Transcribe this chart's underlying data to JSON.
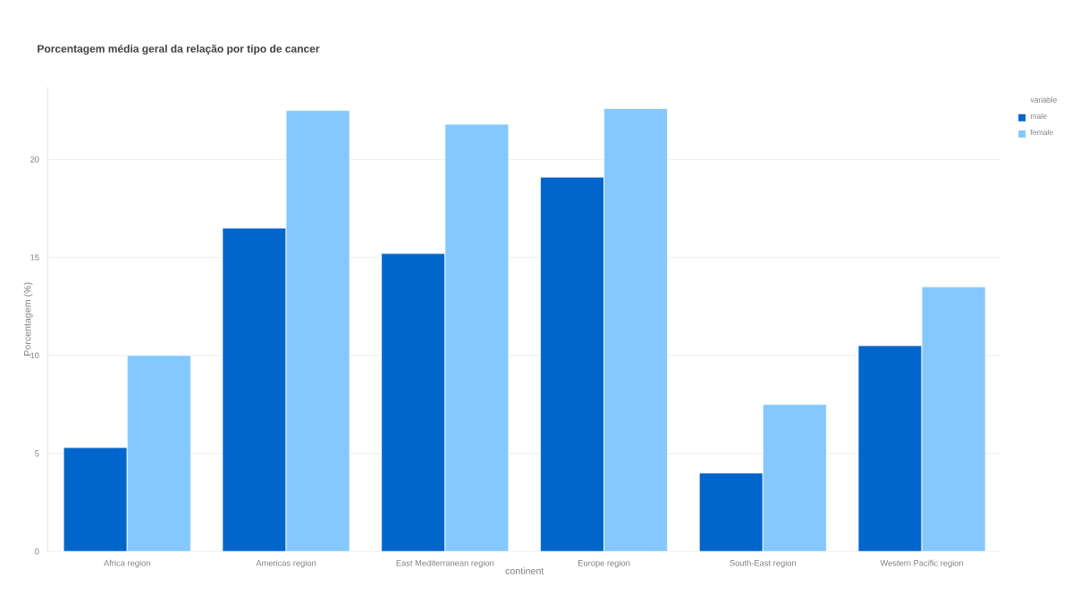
{
  "chart_data": {
    "type": "bar",
    "title": "Porcentagem média geral da relação por tipo de cancer",
    "xlabel": "continent",
    "ylabel": "Porcentagem (%)",
    "legend_title": "variable",
    "categories": [
      "Africa region",
      "Americas region",
      "East Mediterranean region",
      "Europe region",
      "South-East region",
      "Western Pacific region"
    ],
    "series": [
      {
        "name": "male",
        "color": "#0066cc",
        "values": [
          5.3,
          16.5,
          15.2,
          19.1,
          4.0,
          10.5
        ]
      },
      {
        "name": "female",
        "color": "#85c8ff",
        "values": [
          10.0,
          22.5,
          21.8,
          22.6,
          7.5,
          13.5
        ]
      }
    ],
    "ylim": [
      0,
      23.7
    ],
    "yticks": [
      0,
      5,
      10,
      15,
      20
    ],
    "grid": "y",
    "legend": "top right"
  }
}
